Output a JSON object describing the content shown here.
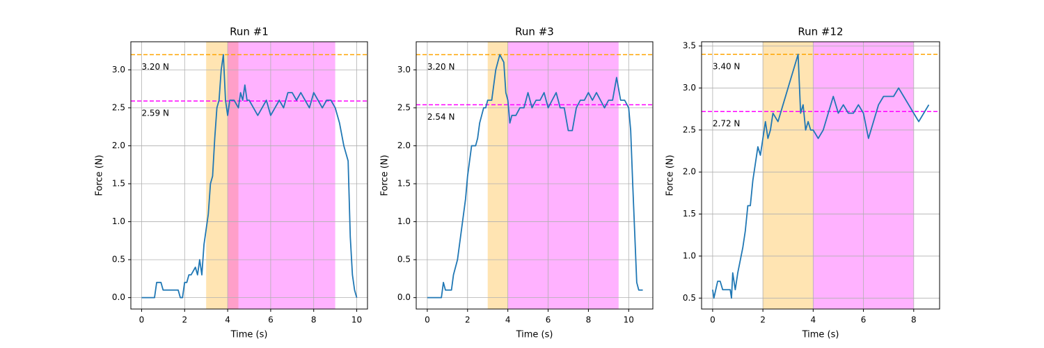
{
  "chart_data": [
    {
      "type": "line",
      "title": "Run #1",
      "x_label": "Time (s)",
      "y_label": "Force (N)",
      "grid": true,
      "x": [
        0,
        0.6,
        0.7,
        0.9,
        1.0,
        1.7,
        1.8,
        1.9,
        2.0,
        2.1,
        2.2,
        2.3,
        2.5,
        2.6,
        2.7,
        2.8,
        2.9,
        3.0,
        3.1,
        3.2,
        3.3,
        3.4,
        3.5,
        3.6,
        3.7,
        3.8,
        3.9,
        4.0,
        4.1,
        4.2,
        4.3,
        4.5,
        4.6,
        4.7,
        4.8,
        4.9,
        5.0,
        5.2,
        5.4,
        5.6,
        5.8,
        6.0,
        6.2,
        6.4,
        6.6,
        6.8,
        7.0,
        7.2,
        7.4,
        7.6,
        7.8,
        8.0,
        8.2,
        8.4,
        8.6,
        8.8,
        9.0,
        9.2,
        9.4,
        9.6,
        9.7,
        9.8,
        9.9,
        10.0
      ],
      "values": [
        0,
        0,
        0.2,
        0.2,
        0.1,
        0.1,
        0,
        0,
        0.2,
        0.2,
        0.3,
        0.3,
        0.4,
        0.3,
        0.5,
        0.3,
        0.7,
        0.9,
        1.1,
        1.5,
        1.6,
        2.1,
        2.5,
        2.6,
        3.0,
        3.2,
        2.6,
        2.4,
        2.6,
        2.6,
        2.6,
        2.5,
        2.7,
        2.6,
        2.8,
        2.6,
        2.6,
        2.5,
        2.4,
        2.5,
        2.6,
        2.4,
        2.5,
        2.6,
        2.5,
        2.7,
        2.7,
        2.6,
        2.7,
        2.6,
        2.5,
        2.7,
        2.6,
        2.5,
        2.6,
        2.6,
        2.5,
        2.3,
        2.0,
        1.8,
        0.8,
        0.3,
        0.1,
        0
      ],
      "color": "#1f77b4",
      "xlim": [
        -0.5,
        10.5
      ],
      "xticks": [
        0,
        2,
        4,
        6,
        8,
        10
      ],
      "ylim": [
        -0.15,
        3.37
      ],
      "yticks": [
        {
          "value": 0,
          "label": "0.0"
        },
        0.5,
        {
          "value": 1,
          "label": "1.0"
        },
        1.5,
        {
          "value": 2,
          "label": "2.0"
        },
        2.5,
        {
          "value": 3,
          "label": "3.0"
        }
      ],
      "spans": [
        {
          "start": 3,
          "end": 4.5,
          "color": "#ffa500"
        },
        {
          "start": 4,
          "end": 9,
          "color": "#ff00ff"
        }
      ],
      "hlines": [
        {
          "value": 3.2,
          "label": "3.20 N",
          "color": "#ffa500"
        },
        {
          "value": 2.59,
          "label": "2.59 N",
          "color": "#ff00ff"
        }
      ]
    },
    {
      "type": "line",
      "title": "Run #3",
      "x_label": "Time (s)",
      "y_label": "Force (N)",
      "grid": true,
      "x": [
        0,
        0.7,
        0.8,
        0.9,
        1.2,
        1.3,
        1.5,
        1.7,
        1.9,
        2.0,
        2.1,
        2.2,
        2.4,
        2.5,
        2.6,
        2.7,
        2.8,
        2.9,
        3.0,
        3.2,
        3.3,
        3.4,
        3.5,
        3.6,
        3.8,
        3.9,
        4.0,
        4.1,
        4.2,
        4.4,
        4.6,
        4.8,
        5.0,
        5.2,
        5.4,
        5.6,
        5.8,
        6.0,
        6.2,
        6.4,
        6.6,
        6.8,
        7.0,
        7.2,
        7.4,
        7.6,
        7.8,
        8.0,
        8.2,
        8.4,
        8.6,
        8.8,
        9.0,
        9.2,
        9.4,
        9.6,
        9.8,
        10.0,
        10.1,
        10.2,
        10.4,
        10.5,
        10.7
      ],
      "values": [
        0,
        0,
        0.2,
        0.1,
        0.1,
        0.3,
        0.5,
        0.9,
        1.3,
        1.6,
        1.8,
        2.0,
        2.0,
        2.1,
        2.3,
        2.4,
        2.5,
        2.5,
        2.6,
        2.6,
        2.8,
        3.0,
        3.1,
        3.2,
        3.1,
        2.7,
        2.6,
        2.3,
        2.4,
        2.4,
        2.5,
        2.5,
        2.7,
        2.5,
        2.6,
        2.6,
        2.7,
        2.5,
        2.6,
        2.7,
        2.5,
        2.5,
        2.2,
        2.2,
        2.5,
        2.6,
        2.6,
        2.7,
        2.6,
        2.7,
        2.6,
        2.5,
        2.6,
        2.6,
        2.9,
        2.6,
        2.6,
        2.5,
        2.2,
        1.5,
        0.2,
        0.1,
        0.1
      ],
      "color": "#1f77b4",
      "xlim": [
        -0.55,
        11.2
      ],
      "xticks": [
        0,
        2,
        4,
        6,
        8,
        10
      ],
      "ylim": [
        -0.15,
        3.37
      ],
      "yticks": [
        {
          "value": 0,
          "label": "0.0"
        },
        0.5,
        {
          "value": 1,
          "label": "1.0"
        },
        1.5,
        {
          "value": 2,
          "label": "2.0"
        },
        2.5,
        {
          "value": 3,
          "label": "3.0"
        }
      ],
      "spans": [
        {
          "start": 3,
          "end": 4,
          "color": "#ffa500"
        },
        {
          "start": 4,
          "end": 9.5,
          "color": "#ff00ff"
        }
      ],
      "hlines": [
        {
          "value": 3.2,
          "label": "3.20 N",
          "color": "#ffa500"
        },
        {
          "value": 2.54,
          "label": "2.54 N",
          "color": "#ff00ff"
        }
      ]
    },
    {
      "type": "line",
      "title": "Run #12",
      "x_label": "Time (s)",
      "y_label": "Force (N)",
      "grid": true,
      "x": [
        0,
        0.05,
        0.2,
        0.3,
        0.4,
        0.7,
        0.75,
        0.8,
        0.9,
        1.0,
        1.2,
        1.3,
        1.4,
        1.5,
        1.6,
        1.7,
        1.8,
        1.9,
        2.0,
        2.1,
        2.2,
        2.3,
        2.4,
        2.6,
        2.8,
        3.0,
        3.2,
        3.4,
        3.5,
        3.6,
        3.7,
        3.8,
        3.9,
        4.0,
        4.2,
        4.4,
        4.6,
        4.8,
        5.0,
        5.2,
        5.4,
        5.6,
        5.8,
        6.0,
        6.2,
        6.4,
        6.6,
        6.8,
        7.0,
        7.2,
        7.4,
        7.6,
        7.8,
        8.0,
        8.2,
        8.4,
        8.6
      ],
      "values": [
        0.6,
        0.5,
        0.7,
        0.7,
        0.6,
        0.6,
        0.5,
        0.8,
        0.6,
        0.8,
        1.1,
        1.3,
        1.6,
        1.6,
        1.9,
        2.1,
        2.3,
        2.2,
        2.4,
        2.6,
        2.4,
        2.5,
        2.7,
        2.6,
        2.8,
        3.0,
        3.2,
        3.4,
        2.7,
        2.8,
        2.5,
        2.6,
        2.5,
        2.5,
        2.4,
        2.5,
        2.7,
        2.9,
        2.7,
        2.8,
        2.7,
        2.7,
        2.8,
        2.7,
        2.4,
        2.6,
        2.8,
        2.9,
        2.9,
        2.9,
        3.0,
        2.9,
        2.8,
        2.7,
        2.6,
        2.7,
        2.8
      ],
      "color": "#1f77b4",
      "xlim": [
        -0.44,
        9.03
      ],
      "xticks": [
        0,
        2,
        4,
        6,
        8
      ],
      "ylim": [
        0.37,
        3.55
      ],
      "yticks": [
        0.5,
        {
          "value": 1,
          "label": "1.0"
        },
        1.5,
        {
          "value": 2,
          "label": "2.0"
        },
        2.5,
        {
          "value": 3,
          "label": "3.0"
        },
        3.5
      ],
      "spans": [
        {
          "start": 2,
          "end": 4,
          "color": "#ffa500"
        },
        {
          "start": 4,
          "end": 8,
          "color": "#ff00ff"
        }
      ],
      "hlines": [
        {
          "value": 3.4,
          "label": "3.40 N",
          "color": "#ffa500"
        },
        {
          "value": 2.72,
          "label": "2.72 N",
          "color": "#ff00ff"
        }
      ]
    }
  ]
}
